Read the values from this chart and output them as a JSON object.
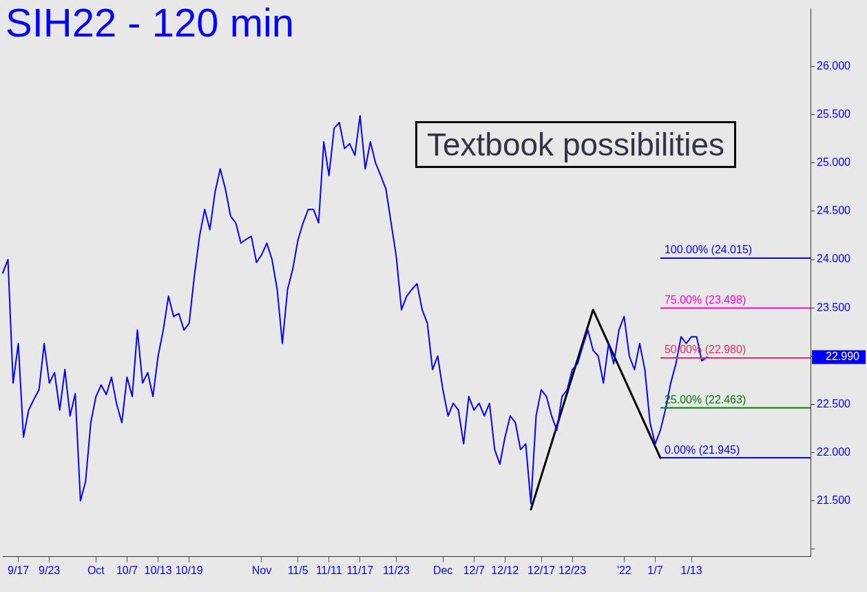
{
  "chart_data": {
    "type": "line",
    "title": "SIH22 - 120 min",
    "categories": [
      null,
      null,
      null,
      "9/17",
      null,
      null,
      null,
      null,
      null,
      "9/23",
      null,
      null,
      null,
      null,
      null,
      null,
      null,
      null,
      "Oct",
      null,
      null,
      null,
      null,
      null,
      "10/7",
      null,
      null,
      null,
      null,
      null,
      "10/13",
      null,
      null,
      null,
      null,
      null,
      "10/19",
      null,
      null,
      null,
      null,
      null,
      null,
      null,
      null,
      null,
      null,
      null,
      null,
      null,
      "Nov",
      null,
      null,
      null,
      null,
      null,
      null,
      "11/5",
      null,
      null,
      null,
      null,
      null,
      "11/11",
      null,
      null,
      null,
      null,
      null,
      "11/17",
      null,
      null,
      null,
      null,
      null,
      null,
      "11/23",
      null,
      null,
      null,
      null,
      null,
      null,
      null,
      null,
      "Dec",
      null,
      null,
      null,
      null,
      null,
      "12/7",
      null,
      null,
      null,
      null,
      null,
      "12/12",
      null,
      null,
      null,
      null,
      null,
      null,
      "12/17",
      null,
      null,
      null,
      null,
      null,
      "12/23",
      null,
      null,
      null,
      null,
      null,
      null,
      null,
      null,
      null,
      "'22",
      null,
      null,
      null,
      null,
      null,
      "1/7",
      null,
      null,
      null,
      null,
      null,
      null,
      "1/13",
      null,
      null,
      null,
      null,
      null,
      null,
      null,
      null,
      null,
      null,
      null,
      null,
      null,
      null,
      null,
      null,
      null,
      null,
      null,
      null,
      null,
      null,
      null
    ],
    "ylim": [
      20.92,
      26.6
    ],
    "yticks": [
      {
        "value": 21,
        "label": null
      },
      {
        "value": 21.5,
        "label": "21.500"
      },
      {
        "value": 22,
        "label": "22.000"
      },
      {
        "value": 22.5,
        "label": "22.500"
      },
      {
        "value": 23,
        "label": null
      },
      {
        "value": 23.5,
        "label": "23.500"
      },
      {
        "value": 24,
        "label": "24.000"
      },
      {
        "value": 24.5,
        "label": "24.500"
      },
      {
        "value": 25,
        "label": "25.000"
      },
      {
        "value": 25.5,
        "label": "25.500"
      },
      {
        "value": 26,
        "label": "26.000"
      }
    ],
    "series": [
      {
        "color": "#0000ff",
        "values": [
          23.86,
          24.0,
          22.72,
          23.13,
          22.16,
          22.44,
          22.55,
          22.65,
          23.13,
          22.72,
          22.83,
          22.44,
          22.86,
          22.38,
          22.61,
          21.5,
          21.7,
          22.31,
          22.58,
          22.7,
          22.6,
          22.78,
          22.5,
          22.31,
          22.78,
          22.58,
          23.27,
          22.72,
          22.83,
          22.58,
          23.0,
          23.27,
          23.62,
          23.41,
          23.44,
          23.27,
          23.34,
          23.83,
          24.24,
          24.52,
          24.31,
          24.7,
          24.94,
          24.73,
          24.45,
          24.38,
          24.17,
          24.21,
          24.24,
          23.97,
          24.05,
          24.17,
          24.0,
          23.69,
          23.13,
          23.69,
          23.9,
          24.2,
          24.38,
          24.52,
          24.52,
          24.38,
          25.22,
          24.87,
          25.36,
          25.42,
          25.15,
          25.2,
          25.08,
          25.49,
          24.94,
          25.22,
          25.0,
          24.87,
          24.73,
          24.38,
          24.03,
          23.48,
          23.62,
          23.69,
          23.75,
          23.48,
          23.34,
          22.86,
          23.0,
          22.65,
          22.38,
          22.51,
          22.44,
          22.09,
          22.58,
          22.44,
          22.51,
          22.38,
          22.51,
          22.03,
          21.88,
          22.16,
          22.38,
          22.31,
          22.03,
          22.09,
          21.47,
          22.38,
          22.65,
          22.58,
          22.38,
          22.23,
          22.58,
          22.65,
          22.86,
          22.92,
          23.1,
          23.27,
          23.06,
          23.0,
          22.72,
          23.13,
          22.92,
          23.27,
          23.41,
          23.0,
          22.86,
          23.13,
          22.86,
          22.31,
          22.09,
          22.23,
          22.45,
          22.72,
          22.92,
          23.2,
          23.13,
          23.2,
          23.2,
          22.95,
          22.99,
          null,
          null,
          null,
          null,
          null,
          null,
          null,
          null,
          null,
          null,
          null,
          null,
          null,
          null,
          null,
          null,
          null,
          null,
          null,
          null
        ]
      },
      {
        "color": "#000000",
        "values": [
          null,
          null,
          null,
          null,
          null,
          null,
          null,
          null,
          null,
          null,
          null,
          null,
          null,
          null,
          null,
          null,
          null,
          null,
          null,
          null,
          null,
          null,
          null,
          null,
          null,
          null,
          null,
          null,
          null,
          null,
          null,
          null,
          null,
          null,
          null,
          null,
          null,
          null,
          null,
          null,
          null,
          null,
          null,
          null,
          null,
          null,
          null,
          null,
          null,
          null,
          null,
          null,
          null,
          null,
          null,
          null,
          null,
          null,
          null,
          null,
          null,
          null,
          null,
          null,
          null,
          null,
          null,
          null,
          null,
          null,
          null,
          null,
          null,
          null,
          null,
          null,
          null,
          null,
          null,
          null,
          null,
          null,
          null,
          null,
          null,
          null,
          null,
          null,
          null,
          null,
          null,
          null,
          null,
          null,
          null,
          null,
          null,
          null,
          null,
          null,
          null,
          null,
          21.41,
          null,
          null,
          null,
          null,
          null,
          null,
          null,
          null,
          null,
          null,
          null,
          23.48,
          null,
          null,
          null,
          null,
          null,
          null,
          null,
          null,
          null,
          null,
          null,
          null,
          21.945,
          null,
          null,
          null,
          null,
          null,
          null,
          null,
          null,
          null,
          null,
          null,
          null,
          null,
          null,
          null,
          null,
          null,
          null,
          null,
          null,
          null,
          null,
          null,
          null,
          null,
          null,
          null,
          null,
          null
        ]
      }
    ],
    "ref_lines": [
      {
        "axis": "y",
        "value": 24.015,
        "label": "100.00% (24.015)",
        "color": "#0000ff"
      },
      {
        "axis": "y",
        "value": 23.498,
        "label": "75.00% (23.498)",
        "color": "#ff00cc"
      },
      {
        "axis": "y",
        "value": 22.98,
        "label": "50.00% (22.980)",
        "color": "#e0306a"
      },
      {
        "axis": "y",
        "value": 22.463,
        "label": "25.00% (22.463)",
        "color": "#007a00"
      },
      {
        "axis": "y",
        "value": 21.945,
        "label": "0.00% (21.945)",
        "color": "#0000ff"
      }
    ],
    "annotations": [
      "Textbook possibilities",
      "22.990"
    ]
  }
}
